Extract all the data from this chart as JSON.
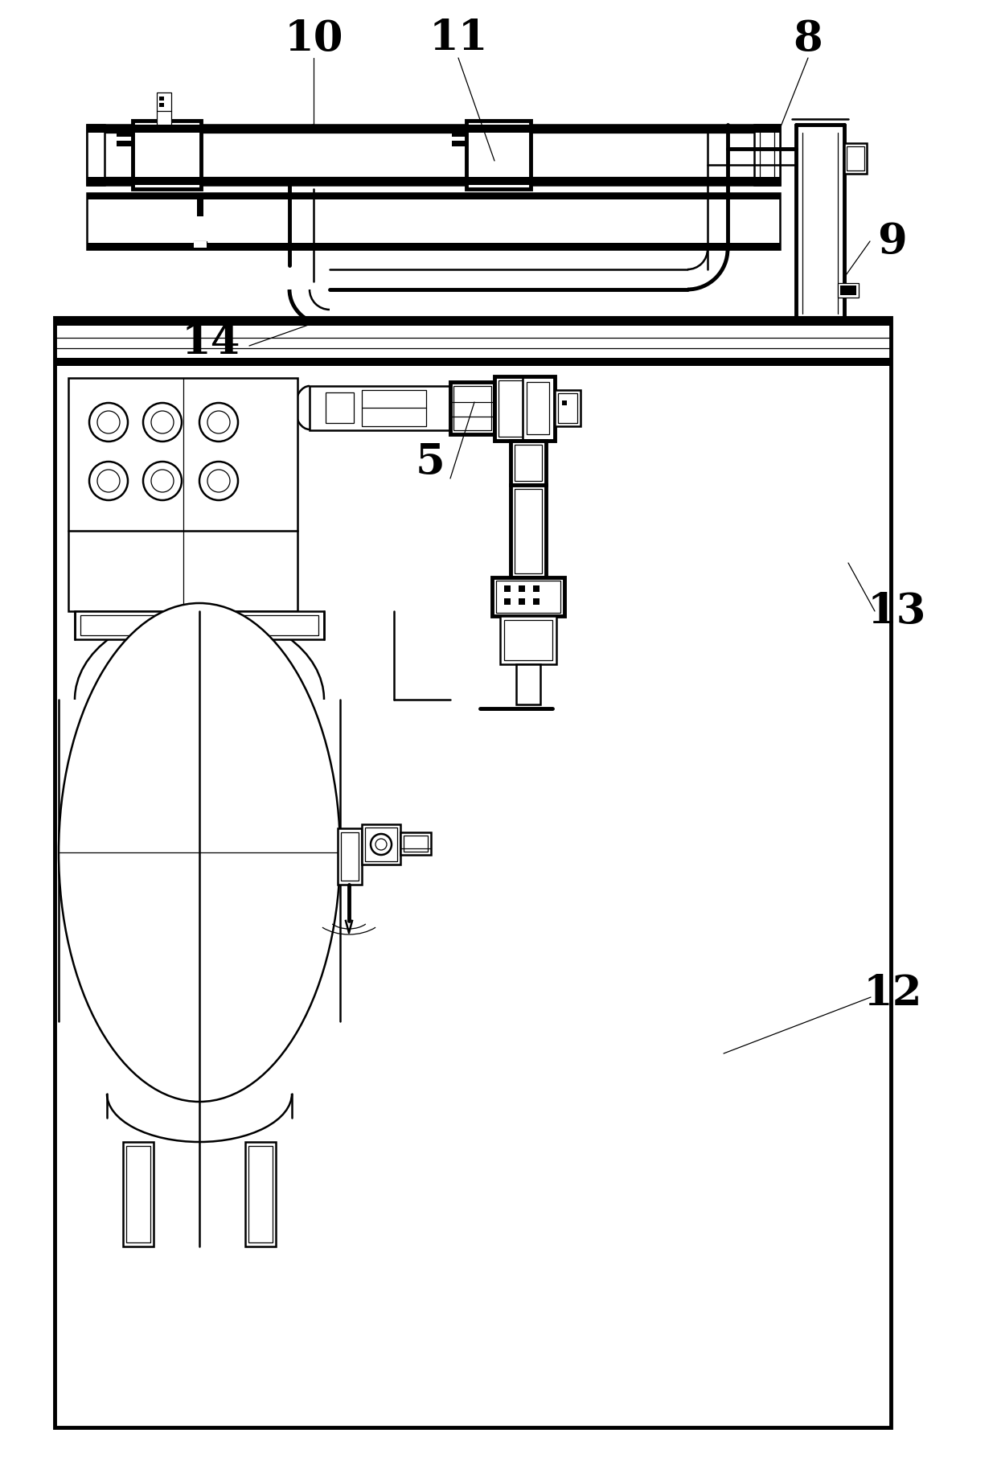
{
  "bg_color": "#ffffff",
  "line_color": "#000000",
  "lw": 1.8,
  "lw_thick": 3.5,
  "lw_thin": 0.9,
  "fig_width": 12.4,
  "fig_height": 18.18,
  "dpi": 100
}
